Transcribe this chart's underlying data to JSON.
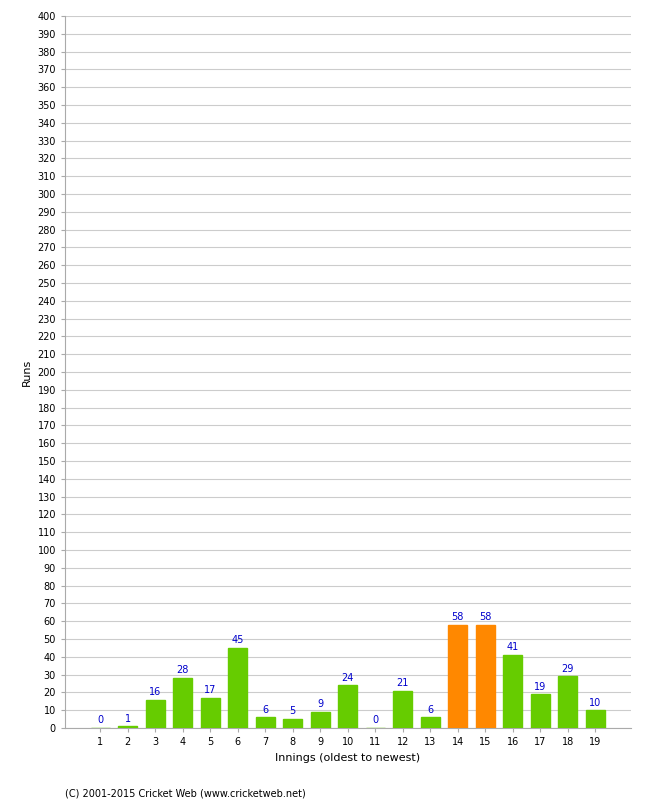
{
  "xlabel": "Innings (oldest to newest)",
  "ylabel": "Runs",
  "categories": [
    "1",
    "2",
    "3",
    "4",
    "5",
    "6",
    "7",
    "8",
    "9",
    "10",
    "11",
    "12",
    "13",
    "14",
    "15",
    "16",
    "17",
    "18",
    "19"
  ],
  "values": [
    0,
    1,
    16,
    28,
    17,
    45,
    6,
    5,
    9,
    24,
    0,
    21,
    6,
    58,
    58,
    41,
    19,
    29,
    10
  ],
  "bar_colors": [
    "#66cc00",
    "#66cc00",
    "#66cc00",
    "#66cc00",
    "#66cc00",
    "#66cc00",
    "#66cc00",
    "#66cc00",
    "#66cc00",
    "#66cc00",
    "#66cc00",
    "#66cc00",
    "#66cc00",
    "#ff8800",
    "#ff8800",
    "#66cc00",
    "#66cc00",
    "#66cc00",
    "#66cc00"
  ],
  "ylim": [
    0,
    400
  ],
  "value_label_color": "#0000cc",
  "background_color": "#ffffff",
  "grid_color": "#cccccc",
  "footer": "(C) 2001-2015 Cricket Web (www.cricketweb.net)",
  "ylabel_fontsize": 8,
  "xlabel_fontsize": 8,
  "tick_fontsize": 7,
  "value_fontsize": 7,
  "footer_fontsize": 7
}
